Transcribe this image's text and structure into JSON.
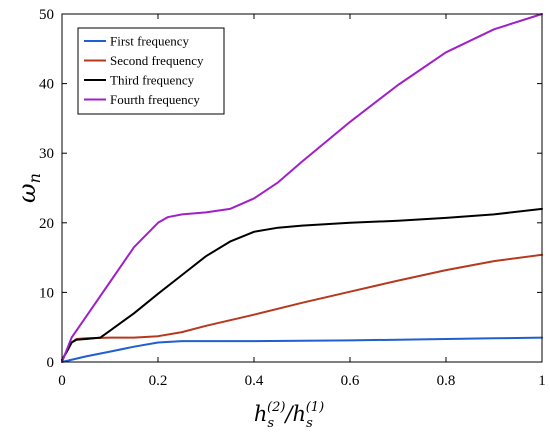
{
  "chart_data": {
    "type": "line",
    "xlabel": "h_s^(2)/h_s^(1)",
    "ylabel": "ω_n",
    "xlim": [
      0,
      1
    ],
    "ylim": [
      0,
      50
    ],
    "x_ticks": [
      "0",
      "0.2",
      "0.4",
      "0.6",
      "0.8",
      "1"
    ],
    "y_ticks": [
      "0",
      "10",
      "20",
      "30",
      "40",
      "50"
    ],
    "grid": false,
    "legend_position": "top-left",
    "series": [
      {
        "name": "First frequency",
        "color": "#1f5fd0",
        "x": [
          0,
          0.05,
          0.1,
          0.15,
          0.2,
          0.25,
          0.3,
          0.4,
          0.5,
          0.6,
          0.7,
          0.8,
          0.9,
          1.0
        ],
        "y": [
          0,
          0.8,
          1.5,
          2.2,
          2.8,
          3.0,
          3.0,
          3.0,
          3.05,
          3.1,
          3.2,
          3.3,
          3.4,
          3.5
        ]
      },
      {
        "name": "Second frequency",
        "color": "#b5391f",
        "x": [
          0,
          0.01,
          0.02,
          0.03,
          0.05,
          0.1,
          0.15,
          0.2,
          0.25,
          0.3,
          0.4,
          0.5,
          0.6,
          0.7,
          0.8,
          0.9,
          1.0
        ],
        "y": [
          0.3,
          1.5,
          2.8,
          3.3,
          3.4,
          3.5,
          3.5,
          3.7,
          4.3,
          5.2,
          6.8,
          8.5,
          10.1,
          11.7,
          13.2,
          14.5,
          15.4
        ]
      },
      {
        "name": "Third frequency",
        "color": "#000000",
        "x": [
          0,
          0.01,
          0.02,
          0.03,
          0.05,
          0.08,
          0.1,
          0.15,
          0.2,
          0.25,
          0.3,
          0.35,
          0.4,
          0.45,
          0.5,
          0.6,
          0.7,
          0.8,
          0.9,
          1.0
        ],
        "y": [
          0.3,
          1.5,
          2.8,
          3.2,
          3.3,
          3.5,
          4.5,
          7.0,
          9.8,
          12.5,
          15.2,
          17.3,
          18.7,
          19.3,
          19.6,
          20.0,
          20.3,
          20.7,
          21.2,
          22.0
        ]
      },
      {
        "name": "Fourth frequency",
        "color": "#a020c8",
        "x": [
          0,
          0.02,
          0.05,
          0.1,
          0.15,
          0.2,
          0.22,
          0.25,
          0.3,
          0.35,
          0.4,
          0.45,
          0.5,
          0.6,
          0.7,
          0.8,
          0.9,
          1.0
        ],
        "y": [
          0,
          3.5,
          6.5,
          11.5,
          16.5,
          20.0,
          20.8,
          21.2,
          21.5,
          22.0,
          23.5,
          25.8,
          28.8,
          34.5,
          39.8,
          44.5,
          47.8,
          50.0
        ]
      }
    ]
  }
}
